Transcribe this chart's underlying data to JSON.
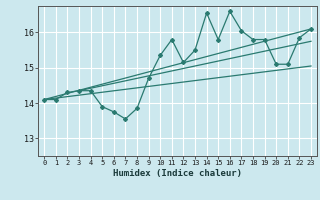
{
  "title": "",
  "xlabel": "Humidex (Indice chaleur)",
  "bg_color": "#cce8ee",
  "grid_color": "#ffffff",
  "line_color": "#2a7a70",
  "xlim": [
    -0.5,
    23.5
  ],
  "ylim": [
    12.5,
    16.75
  ],
  "yticks": [
    13,
    14,
    15,
    16
  ],
  "xticks": [
    0,
    1,
    2,
    3,
    4,
    5,
    6,
    7,
    8,
    9,
    10,
    11,
    12,
    13,
    14,
    15,
    16,
    17,
    18,
    19,
    20,
    21,
    22,
    23
  ],
  "main_series": [
    [
      0,
      14.1
    ],
    [
      1,
      14.1
    ],
    [
      2,
      14.3
    ],
    [
      3,
      14.35
    ],
    [
      4,
      14.35
    ],
    [
      5,
      13.9
    ],
    [
      6,
      13.75
    ],
    [
      7,
      13.55
    ],
    [
      8,
      13.85
    ],
    [
      9,
      14.7
    ],
    [
      10,
      15.35
    ],
    [
      11,
      15.8
    ],
    [
      12,
      15.15
    ],
    [
      13,
      15.5
    ],
    [
      14,
      16.55
    ],
    [
      15,
      15.8
    ],
    [
      16,
      16.6
    ],
    [
      17,
      16.05
    ],
    [
      18,
      15.8
    ],
    [
      19,
      15.8
    ],
    [
      20,
      15.1
    ],
    [
      21,
      15.1
    ],
    [
      22,
      15.85
    ],
    [
      23,
      16.1
    ]
  ],
  "trend_line1": [
    [
      0,
      14.1
    ],
    [
      23,
      16.1
    ]
  ],
  "trend_line2": [
    [
      0,
      14.1
    ],
    [
      23,
      15.05
    ]
  ],
  "trend_line3": [
    [
      3,
      14.35
    ],
    [
      23,
      15.75
    ]
  ]
}
